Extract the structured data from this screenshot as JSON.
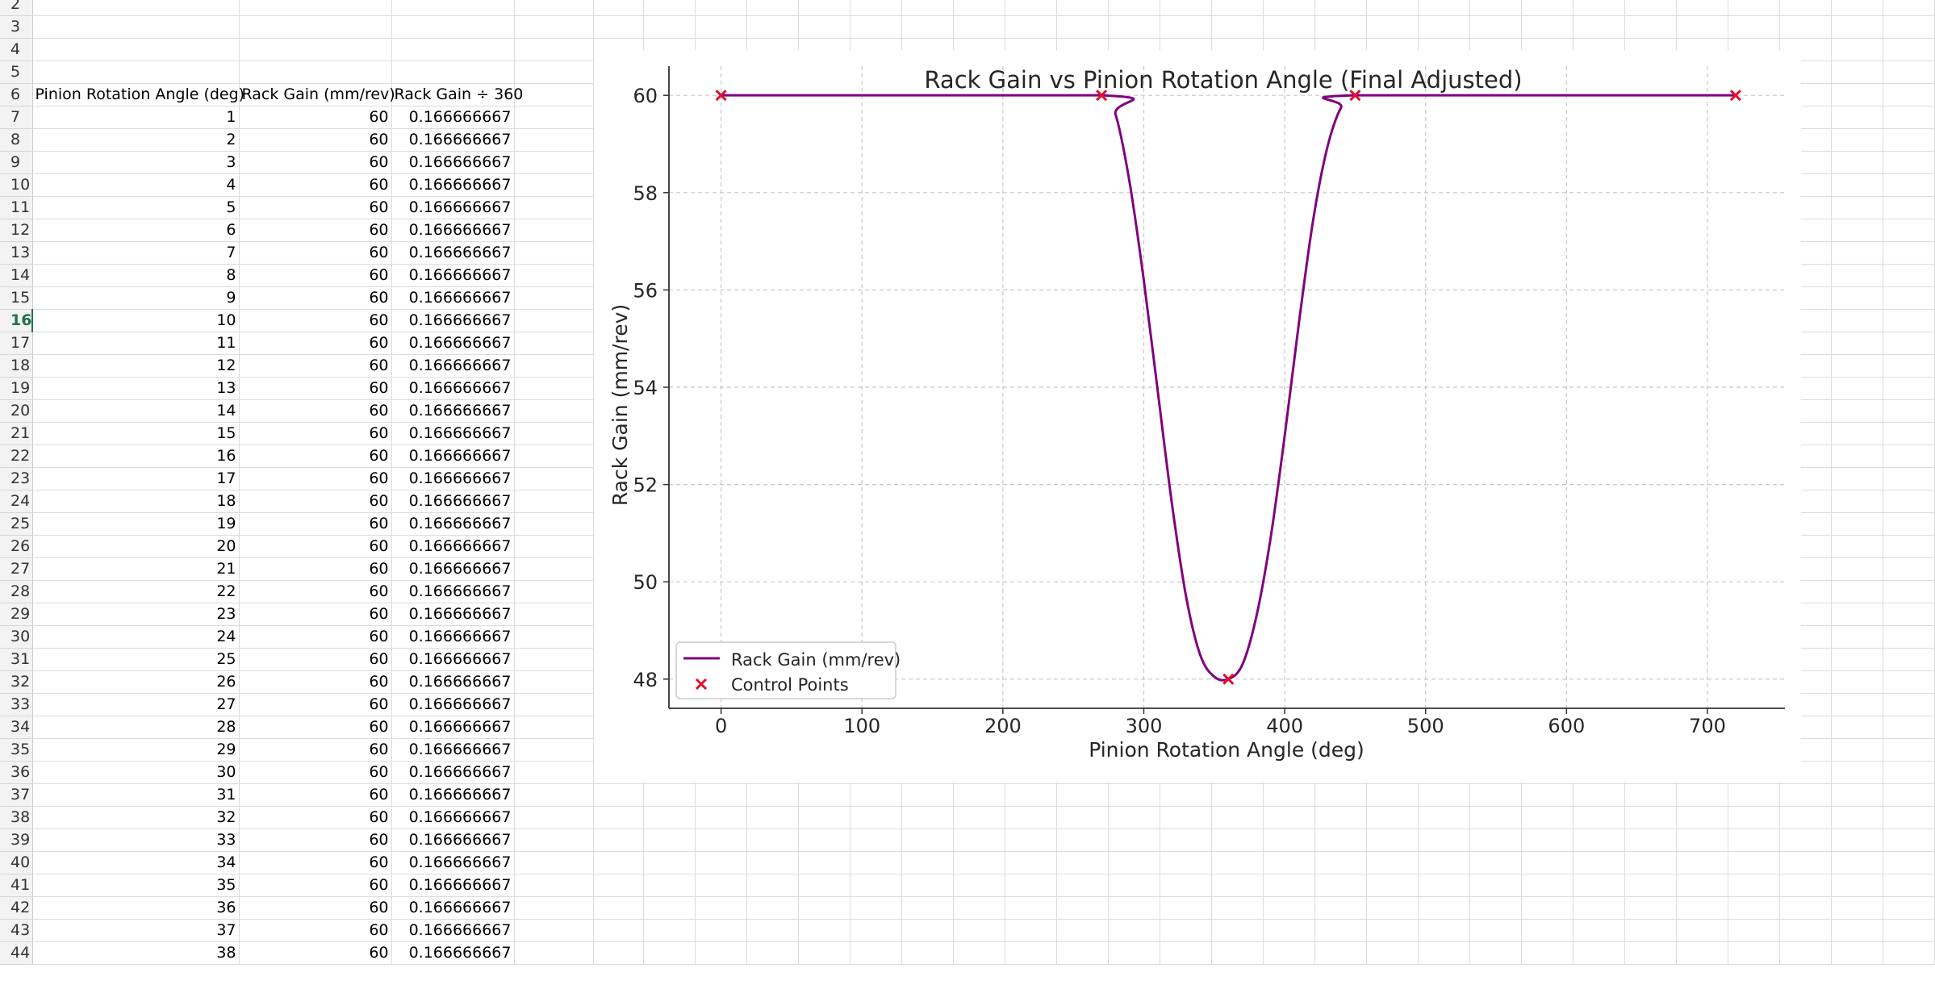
{
  "sheet": {
    "row_numbers": [
      "2",
      "3",
      "4",
      "5",
      "6",
      "7",
      "8",
      "9",
      "10",
      "11",
      "12",
      "13",
      "14",
      "15",
      "16",
      "17",
      "18",
      "19",
      "20",
      "21",
      "22",
      "23",
      "24",
      "25",
      "26",
      "27",
      "28",
      "29",
      "30",
      "31",
      "32",
      "33",
      "34",
      "35",
      "36",
      "37",
      "38",
      "39",
      "40",
      "41",
      "42",
      "43",
      "44"
    ],
    "selected_row": "16",
    "headers": {
      "col_a": "Pinion Rotation Angle (deg)",
      "col_b": "Rack Gain (mm/rev)",
      "col_c": "Rack Gain ÷ 360"
    },
    "rows": [
      [
        "1",
        "60",
        "0.166666667"
      ],
      [
        "2",
        "60",
        "0.166666667"
      ],
      [
        "3",
        "60",
        "0.166666667"
      ],
      [
        "4",
        "60",
        "0.166666667"
      ],
      [
        "5",
        "60",
        "0.166666667"
      ],
      [
        "6",
        "60",
        "0.166666667"
      ],
      [
        "7",
        "60",
        "0.166666667"
      ],
      [
        "8",
        "60",
        "0.166666667"
      ],
      [
        "9",
        "60",
        "0.166666667"
      ],
      [
        "10",
        "60",
        "0.166666667"
      ],
      [
        "11",
        "60",
        "0.166666667"
      ],
      [
        "12",
        "60",
        "0.166666667"
      ],
      [
        "13",
        "60",
        "0.166666667"
      ],
      [
        "14",
        "60",
        "0.166666667"
      ],
      [
        "15",
        "60",
        "0.166666667"
      ],
      [
        "16",
        "60",
        "0.166666667"
      ],
      [
        "17",
        "60",
        "0.166666667"
      ],
      [
        "18",
        "60",
        "0.166666667"
      ],
      [
        "19",
        "60",
        "0.166666667"
      ],
      [
        "20",
        "60",
        "0.166666667"
      ],
      [
        "21",
        "60",
        "0.166666667"
      ],
      [
        "22",
        "60",
        "0.166666667"
      ],
      [
        "23",
        "60",
        "0.166666667"
      ],
      [
        "24",
        "60",
        "0.166666667"
      ],
      [
        "25",
        "60",
        "0.166666667"
      ],
      [
        "26",
        "60",
        "0.166666667"
      ],
      [
        "27",
        "60",
        "0.166666667"
      ],
      [
        "28",
        "60",
        "0.166666667"
      ],
      [
        "29",
        "60",
        "0.166666667"
      ],
      [
        "30",
        "60",
        "0.166666667"
      ],
      [
        "31",
        "60",
        "0.166666667"
      ],
      [
        "32",
        "60",
        "0.166666667"
      ],
      [
        "33",
        "60",
        "0.166666667"
      ],
      [
        "34",
        "60",
        "0.166666667"
      ],
      [
        "35",
        "60",
        "0.166666667"
      ],
      [
        "36",
        "60",
        "0.166666667"
      ],
      [
        "37",
        "60",
        "0.166666667"
      ],
      [
        "38",
        "60",
        "0.166666667"
      ]
    ]
  },
  "chart_data": {
    "type": "line",
    "title": "Rack Gain vs Pinion Rotation Angle (Final Adjusted)",
    "xlabel": "Pinion Rotation Angle (deg)",
    "ylabel": "Rack Gain (mm/rev)",
    "xlim": [
      -37,
      755
    ],
    "ylim": [
      47.4,
      60.6
    ],
    "xticks": [
      0,
      100,
      200,
      300,
      400,
      500,
      600,
      700
    ],
    "yticks": [
      48,
      50,
      52,
      54,
      56,
      58,
      60
    ],
    "grid": true,
    "legend_position": "lower-left",
    "series": [
      {
        "name": "Rack Gain (mm/rev)",
        "kind": "line",
        "color": "#800080",
        "x": [
          0,
          270,
          280,
          290,
          300,
          310,
          320,
          330,
          340,
          350,
          360,
          370,
          380,
          390,
          400,
          410,
          420,
          430,
          440,
          450,
          720
        ],
        "y": [
          60,
          60,
          59.6,
          58.2,
          56.2,
          53.9,
          51.6,
          49.7,
          48.5,
          48.05,
          48,
          48.3,
          49.3,
          50.9,
          53.0,
          55.3,
          57.4,
          58.9,
          59.75,
          60,
          60
        ]
      },
      {
        "name": "Control Points",
        "kind": "scatter",
        "marker": "x",
        "color": "#e0102e",
        "x": [
          0,
          270,
          360,
          450,
          720
        ],
        "y": [
          60,
          60,
          48,
          60,
          60
        ]
      }
    ]
  }
}
